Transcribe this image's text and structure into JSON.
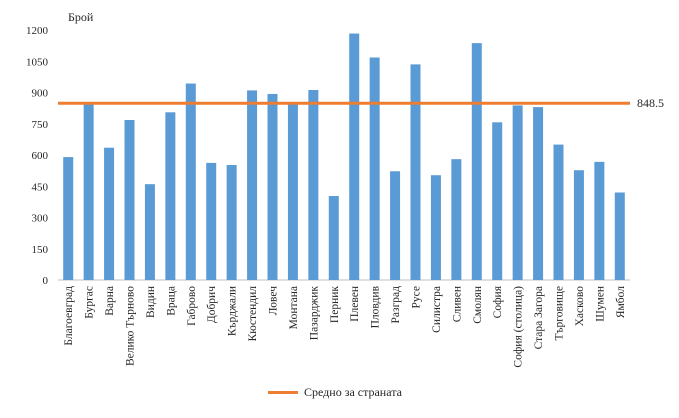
{
  "chart_data": {
    "type": "bar",
    "ylabel": "Брой",
    "ylim": [
      0,
      1200
    ],
    "yticks": [
      0,
      150,
      300,
      450,
      600,
      750,
      900,
      1050,
      1200
    ],
    "categories": [
      "Благоевград",
      "Бургас",
      "Варна",
      "Велико Търново",
      "Видин",
      "Враца",
      "Габрово",
      "Добрич",
      "Кърджали",
      "Кюстендил",
      "Ловеч",
      "Монтана",
      "Пазарджик",
      "Перник",
      "Плевен",
      "Пловдив",
      "Разград",
      "Русе",
      "Силистра",
      "Сливен",
      "Смолян",
      "София",
      "София (столица)",
      "Стара Загора",
      "Търговище",
      "Хасково",
      "Шумен",
      "Ямбол"
    ],
    "series": [
      {
        "values": [
          590,
          850,
          635,
          768,
          460,
          805,
          943,
          562,
          552,
          910,
          893,
          848,
          912,
          403,
          1183,
          1068,
          522,
          1035,
          503,
          580,
          1137,
          757,
          838,
          830,
          650,
          527,
          567,
          420
        ],
        "color": "#5B9BD5"
      }
    ],
    "average_line": {
      "value": 848.5,
      "label": "848.5",
      "name": "Средно за страната",
      "color": "#ED7D31"
    },
    "grid": false,
    "legend": "bottom-center"
  }
}
